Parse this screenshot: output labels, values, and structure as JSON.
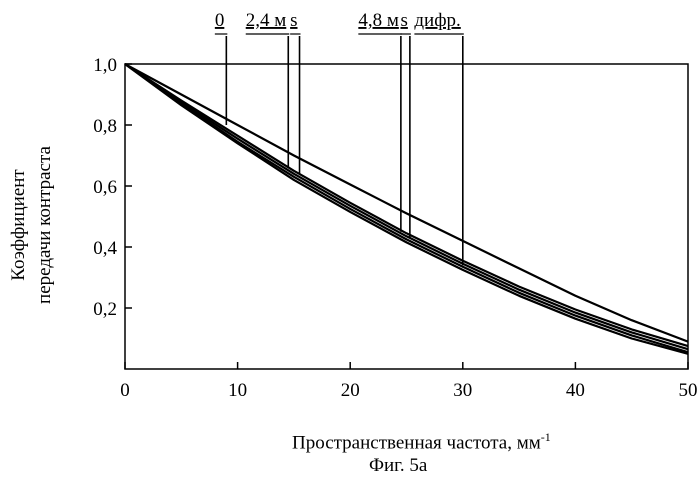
{
  "chart_data": {
    "type": "line",
    "xlabel": "Пространственная частота, мм",
    "xlabel_sup": "-1",
    "ylabel_lines": [
      "Коэффициент",
      "передачи контраста"
    ],
    "caption": "Фиг. 5а",
    "xlim": [
      0,
      50
    ],
    "ylim": [
      0,
      1.0
    ],
    "x_ticks": [
      "0",
      "10",
      "20",
      "30",
      "40",
      "50"
    ],
    "y_ticks": [
      "0,2",
      "0,4",
      "0,6",
      "0,8",
      "1,0"
    ],
    "grid": false,
    "series": [
      {
        "x": [
          0,
          5,
          10,
          15,
          20,
          25,
          30,
          35,
          40,
          45,
          50
        ],
        "y": [
          1.0,
          0.9,
          0.8,
          0.7,
          0.605,
          0.51,
          0.42,
          0.33,
          0.24,
          0.16,
          0.09
        ]
      },
      {
        "x": [
          0,
          5,
          10,
          15,
          20,
          25,
          30,
          35,
          40,
          45,
          50
        ],
        "y": [
          1.0,
          0.88,
          0.765,
          0.65,
          0.545,
          0.445,
          0.355,
          0.27,
          0.195,
          0.13,
          0.075
        ]
      },
      {
        "x": [
          0,
          5,
          10,
          15,
          20,
          25,
          30,
          35,
          40,
          45,
          50
        ],
        "y": [
          1.0,
          0.875,
          0.755,
          0.64,
          0.535,
          0.435,
          0.345,
          0.26,
          0.185,
          0.12,
          0.065
        ]
      },
      {
        "x": [
          0,
          5,
          10,
          15,
          20,
          25,
          30,
          35,
          40,
          45,
          50
        ],
        "y": [
          1.0,
          0.87,
          0.745,
          0.63,
          0.525,
          0.425,
          0.335,
          0.25,
          0.175,
          0.11,
          0.055
        ]
      },
      {
        "x": [
          0,
          5,
          10,
          15,
          20,
          25,
          30,
          35,
          40,
          45,
          50
        ],
        "y": [
          1.0,
          0.865,
          0.74,
          0.62,
          0.515,
          0.415,
          0.325,
          0.24,
          0.165,
          0.1,
          0.05
        ]
      }
    ],
    "annotations": [
      {
        "label": "0",
        "x": 9,
        "y": 0.8
      },
      {
        "label": "2,4 м",
        "x": 14.5,
        "y": 0.66
      },
      {
        "label": "s",
        "x": 15.5,
        "y": 0.64
      },
      {
        "label": "4,8 м",
        "x": 24.5,
        "y": 0.45
      },
      {
        "label": "s",
        "x": 25.3,
        "y": 0.43
      },
      {
        "label": "дифр.",
        "x": 30,
        "y": 0.34
      }
    ]
  }
}
